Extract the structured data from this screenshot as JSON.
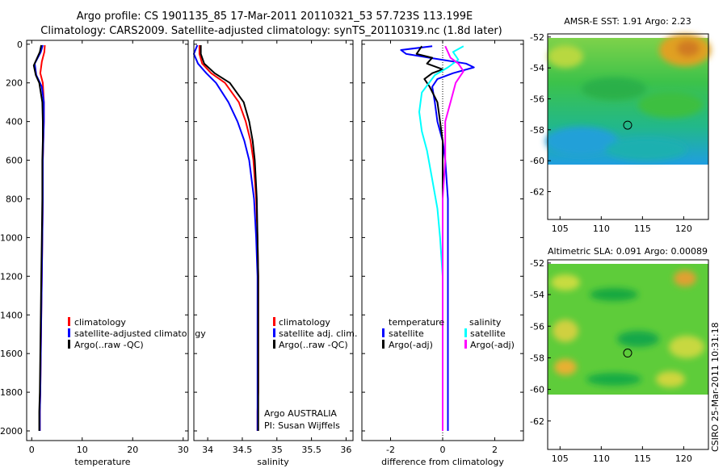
{
  "title": {
    "line1": "Argo profile: CS 1901135_85 17-Mar-2011 20110321_53 57.723S 113.199E",
    "line2": "Climatology: CARS2009. Satellite-adjusted climatology: synTS_20110319.nc (1.8d later)"
  },
  "colors": {
    "climatology": "#ff0000",
    "satellite": "#0000ff",
    "argo": "#000000",
    "sal_satellite": "#00ffff",
    "sal_argo": "#ff00ff"
  },
  "chart_data": [
    {
      "type": "line",
      "name": "temperature-profile",
      "xlabel": "temperature",
      "xlim": [
        -1,
        31
      ],
      "xticks": [
        0,
        10,
        20,
        30
      ],
      "ylim": [
        2050,
        -20
      ],
      "yticks": [
        0,
        200,
        400,
        600,
        800,
        1000,
        1200,
        1400,
        1600,
        1800,
        2000
      ],
      "series": [
        {
          "name": "climatology",
          "x": [
            2.6,
            2.5,
            2.0,
            1.7,
            2.2,
            2.4,
            2.4,
            2.3,
            2.2,
            2.2,
            2.1,
            2.0,
            1.9,
            1.8,
            1.7,
            1.6,
            1.6
          ],
          "y": [
            5,
            40,
            90,
            150,
            200,
            300,
            400,
            500,
            600,
            800,
            1000,
            1200,
            1400,
            1600,
            1800,
            1900,
            2000
          ]
        },
        {
          "name": "satellite-adjusted climatology",
          "x": [
            2.2,
            1.8,
            0.6,
            0.9,
            2.0,
            2.4,
            2.4,
            2.3,
            2.2,
            2.2,
            2.1,
            2.0,
            1.9,
            1.8,
            1.7,
            1.6,
            1.6
          ],
          "y": [
            5,
            40,
            100,
            160,
            220,
            300,
            400,
            500,
            600,
            800,
            1000,
            1200,
            1400,
            1600,
            1800,
            1900,
            2000
          ]
        },
        {
          "name": "Argo(..raw -QC)",
          "x": [
            1.9,
            1.6,
            0.4,
            0.8,
            1.5,
            2.1,
            2.2,
            2.2,
            2.1,
            2.1,
            2.0,
            1.9,
            1.8,
            1.7,
            1.6,
            1.5,
            1.5
          ],
          "y": [
            5,
            40,
            110,
            160,
            200,
            300,
            400,
            500,
            600,
            800,
            1000,
            1200,
            1400,
            1600,
            1800,
            1900,
            2000
          ]
        }
      ],
      "legend": {
        "position": "lower-right",
        "entries": [
          "climatology",
          "satellite-adjusted climatology",
          "Argo(..raw -QC)"
        ]
      }
    },
    {
      "type": "line",
      "name": "salinity-profile",
      "xlabel": "salinity",
      "xlim": [
        33.8,
        36.1
      ],
      "xticks": [
        34,
        34.5,
        35,
        35.5,
        36
      ],
      "xticklabels": [
        "34",
        "34.5",
        "35",
        "35.5",
        "36"
      ],
      "ylim": [
        2050,
        -20
      ],
      "series": [
        {
          "name": "climatology",
          "x": [
            33.88,
            33.88,
            33.92,
            34.05,
            34.25,
            34.45,
            34.55,
            34.62,
            34.66,
            34.7,
            34.72,
            34.73,
            34.73,
            34.73,
            34.73,
            34.72,
            34.72
          ],
          "y": [
            5,
            50,
            100,
            150,
            200,
            300,
            400,
            500,
            600,
            800,
            1000,
            1200,
            1400,
            1600,
            1800,
            1900,
            2000
          ]
        },
        {
          "name": "satellite adj. clim.",
          "x": [
            33.85,
            33.8,
            33.86,
            33.98,
            34.12,
            34.3,
            34.43,
            34.53,
            34.6,
            34.67,
            34.7,
            34.72,
            34.72,
            34.72,
            34.72,
            34.72,
            34.72
          ],
          "y": [
            5,
            50,
            100,
            150,
            200,
            300,
            400,
            500,
            600,
            800,
            1000,
            1200,
            1400,
            1600,
            1800,
            1900,
            2000
          ]
        },
        {
          "name": "Argo(..raw -QC)",
          "x": [
            33.9,
            33.9,
            33.95,
            34.1,
            34.32,
            34.52,
            34.6,
            34.65,
            34.68,
            34.71,
            34.72,
            34.73,
            34.73,
            34.73,
            34.73,
            34.73,
            34.73
          ],
          "y": [
            5,
            50,
            100,
            150,
            200,
            300,
            400,
            500,
            600,
            800,
            1000,
            1200,
            1400,
            1600,
            1800,
            1900,
            2000
          ]
        }
      ],
      "legend": {
        "position": "lower-right",
        "entries": [
          "climatology",
          "satellite adj. clim.",
          "Argo(..raw -QC)"
        ]
      },
      "annotations": [
        "Argo AUSTRALIA",
        "PI: Susan Wijffels"
      ]
    },
    {
      "type": "line",
      "name": "difference-profile",
      "xlabel": "difference from climatology",
      "xlim": [
        -3.1,
        3.1
      ],
      "xticks": [
        -2,
        0,
        2
      ],
      "ylim": [
        2050,
        -20
      ],
      "zero_line": true,
      "series": [
        {
          "name": "temperature satellite",
          "x": [
            -0.4,
            -1.6,
            -1.4,
            -0.5,
            0.9,
            1.2,
            0.4,
            -0.2,
            -0.4,
            -0.3,
            -0.2,
            0.0,
            0.1,
            0.2,
            0.2,
            0.2,
            0.2,
            0.2,
            0.2,
            0.2
          ],
          "y": [
            10,
            30,
            50,
            70,
            100,
            120,
            150,
            180,
            220,
            300,
            400,
            500,
            600,
            800,
            1000,
            1200,
            1400,
            1600,
            1800,
            2000
          ]
        },
        {
          "name": "temperature Argo(-adj)",
          "x": [
            -0.8,
            -1.0,
            -0.4,
            -0.6,
            0.0,
            -0.4,
            -0.7,
            -0.5,
            -0.2,
            -0.1,
            0.0,
            0.0,
            0.0,
            0.0,
            0.0,
            0.0,
            0.0
          ],
          "y": [
            10,
            50,
            70,
            100,
            130,
            150,
            180,
            220,
            300,
            400,
            500,
            600,
            800,
            1000,
            1400,
            1800,
            2000
          ]
        },
        {
          "name": "salinity satellite",
          "x": [
            0.8,
            0.4,
            0.6,
            0.2,
            -0.3,
            -0.8,
            -0.9,
            -0.8,
            -0.6,
            -0.4,
            -0.2,
            -0.1,
            0.0,
            0.0,
            0.0,
            0.0,
            0.0
          ],
          "y": [
            10,
            40,
            80,
            120,
            160,
            250,
            350,
            450,
            550,
            700,
            850,
            1000,
            1200,
            1400,
            1600,
            1800,
            2000
          ]
        },
        {
          "name": "salinity Argo(-adj)",
          "x": [
            0.1,
            0.2,
            0.3,
            0.6,
            0.8,
            0.5,
            0.3,
            0.1,
            0.1,
            0.1,
            0.0,
            0.0,
            0.0,
            0.0,
            0.0,
            0.0,
            0.0,
            0.0
          ],
          "y": [
            10,
            40,
            70,
            100,
            140,
            200,
            300,
            400,
            500,
            600,
            800,
            1000,
            1200,
            1400,
            1600,
            1800,
            1900,
            2000
          ]
        }
      ],
      "legend": {
        "position": "lower-right",
        "headers": [
          "temperature",
          "salinity"
        ],
        "entries": [
          "satellite",
          "Argo(-adj)",
          "satellite",
          "Argo(-adj)"
        ]
      }
    },
    {
      "type": "heatmap",
      "name": "amsre-sst-map",
      "title": "AMSR-E SST: 1.91  Argo: 2.23",
      "xlim": [
        103.5,
        123
      ],
      "ylim": [
        -63.8,
        -51.8
      ],
      "xticks": [
        105,
        110,
        115,
        120
      ],
      "yticks": [
        -52,
        -54,
        -56,
        -58,
        -60,
        -62
      ],
      "data_bottom_lat": -60.2,
      "marker": {
        "lon": 113.2,
        "lat": -57.7
      }
    },
    {
      "type": "heatmap",
      "name": "altimetric-sla-map",
      "title": "Altimetric SLA: 0.091  Argo: 0.00089",
      "xlim": [
        103.5,
        123
      ],
      "ylim": [
        -63.8,
        -51.8
      ],
      "xticks": [
        105,
        110,
        115,
        120
      ],
      "yticks": [
        -52,
        -54,
        -56,
        -58,
        -60,
        -62
      ],
      "data_bottom_lat": -60.2,
      "marker": {
        "lon": 113.2,
        "lat": -57.7
      }
    }
  ],
  "stamp": "CSIRO 25-Mar-2011 10:31:18"
}
